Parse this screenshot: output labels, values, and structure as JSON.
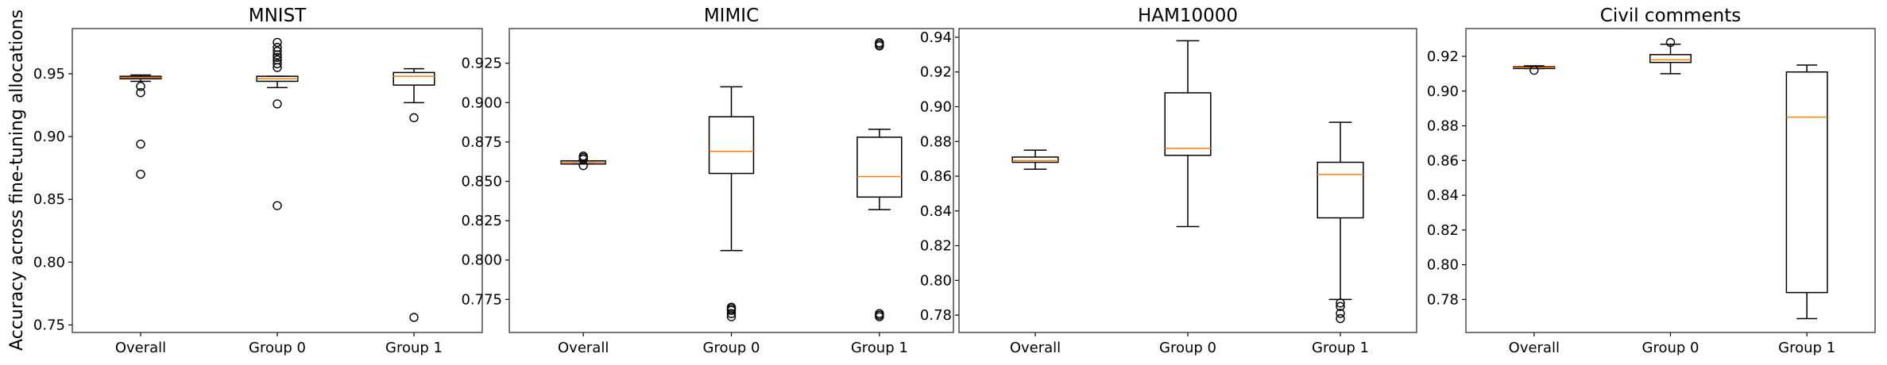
{
  "chart_data": {
    "type": "boxplot",
    "ylabel": "Accuracy across fine-tuning allocations",
    "colors": {
      "box": "#000000",
      "median": "#ff7f0e",
      "axes": "#333333"
    },
    "grid": false,
    "panels": [
      {
        "title": "MNIST",
        "categories": [
          "Overall",
          "Group 0",
          "Group 1"
        ],
        "ylim": [
          0.744,
          0.986
        ],
        "yticks": [
          0.75,
          0.8,
          0.85,
          0.9,
          0.95
        ],
        "ytick_labels": [
          "0.75",
          "0.80",
          "0.85",
          "0.90",
          "0.95"
        ],
        "boxes": [
          {
            "whislo": 0.944,
            "q1": 0.946,
            "med": 0.947,
            "q3": 0.948,
            "whishi": 0.949,
            "fliers": [
              0.94,
              0.935,
              0.894,
              0.87
            ]
          },
          {
            "whislo": 0.939,
            "q1": 0.944,
            "med": 0.946,
            "q3": 0.948,
            "whishi": 0.948,
            "fliers": [
              0.926,
              0.845,
              0.955,
              0.958,
              0.961,
              0.963,
              0.965,
              0.968,
              0.971,
              0.975
            ]
          },
          {
            "whislo": 0.927,
            "q1": 0.941,
            "med": 0.948,
            "q3": 0.951,
            "whishi": 0.954,
            "fliers": [
              0.915,
              0.756
            ]
          }
        ]
      },
      {
        "title": "MIMIC",
        "categories": [
          "Overall",
          "Group 0",
          "Group 1"
        ],
        "ylim": [
          0.754,
          0.947
        ],
        "yticks": [
          0.775,
          0.8,
          0.825,
          0.85,
          0.875,
          0.9,
          0.925
        ],
        "ytick_labels": [
          "0.775",
          "0.800",
          "0.825",
          "0.850",
          "0.875",
          "0.900",
          "0.925"
        ],
        "boxes": [
          {
            "whislo": 0.861,
            "q1": 0.861,
            "med": 0.862,
            "q3": 0.863,
            "whishi": 0.863,
            "fliers": [
              0.86,
              0.864,
              0.865,
              0.866
            ]
          },
          {
            "whislo": 0.806,
            "q1": 0.855,
            "med": 0.869,
            "q3": 0.891,
            "whishi": 0.91,
            "fliers": [
              0.764,
              0.766,
              0.768,
              0.769,
              0.77
            ]
          },
          {
            "whislo": 0.832,
            "q1": 0.84,
            "med": 0.853,
            "q3": 0.878,
            "whishi": 0.883,
            "fliers": [
              0.936,
              0.937,
              0.938,
              0.764,
              0.765,
              0.766
            ]
          }
        ]
      },
      {
        "title": "HAM10000",
        "categories": [
          "Overall",
          "Group 0",
          "Group 1"
        ],
        "ylim": [
          0.77,
          0.945
        ],
        "yticks": [
          0.78,
          0.8,
          0.82,
          0.84,
          0.86,
          0.88,
          0.9,
          0.92,
          0.94
        ],
        "ytick_labels": [
          "0.78",
          "0.80",
          "0.82",
          "0.84",
          "0.86",
          "0.88",
          "0.90",
          "0.92",
          "0.94"
        ],
        "boxes": [
          {
            "whislo": 0.864,
            "q1": 0.868,
            "med": 0.869,
            "q3": 0.871,
            "whishi": 0.875,
            "fliers": []
          },
          {
            "whislo": 0.831,
            "q1": 0.872,
            "med": 0.876,
            "q3": 0.908,
            "whishi": 0.938,
            "fliers": []
          },
          {
            "whislo": 0.789,
            "q1": 0.836,
            "med": 0.861,
            "q3": 0.868,
            "whishi": 0.891,
            "fliers": [
              0.787,
              0.785,
              0.781,
              0.778
            ]
          }
        ]
      },
      {
        "title": "Civil comments",
        "categories": [
          "Overall",
          "Group 0",
          "Group 1"
        ],
        "ylim": [
          0.761,
          0.936
        ],
        "yticks": [
          0.78,
          0.8,
          0.82,
          0.84,
          0.86,
          0.88,
          0.9,
          0.92
        ],
        "ytick_labels": [
          "0.78",
          "0.80",
          "0.82",
          "0.84",
          "0.86",
          "0.88",
          "0.90",
          "0.92"
        ],
        "boxes": [
          {
            "whislo": 0.913,
            "q1": 0.913,
            "med": 0.9135,
            "q3": 0.914,
            "whishi": 0.9145,
            "fliers": [
              0.912
            ]
          },
          {
            "whislo": 0.91,
            "q1": 0.9165,
            "med": 0.918,
            "q3": 0.921,
            "whishi": 0.927,
            "fliers": [
              0.928
            ]
          },
          {
            "whislo": 0.769,
            "q1": 0.784,
            "med": 0.885,
            "q3": 0.911,
            "whishi": 0.915,
            "fliers": []
          }
        ]
      }
    ]
  }
}
